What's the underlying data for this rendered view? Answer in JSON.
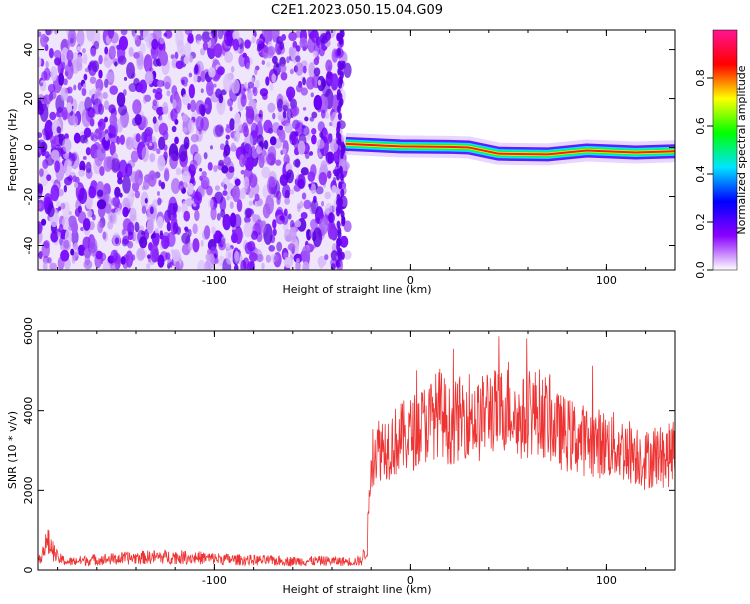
{
  "title": "C2E1.2023.050.15.04.G09",
  "chart_data": [
    {
      "type": "heatmap",
      "title": "C2E1.2023.050.15.04.G09",
      "xlabel": "Height of straight line (km)",
      "ylabel": "Frequency (Hz)",
      "xlim": [
        -190,
        135
      ],
      "ylim": [
        -50,
        48
      ],
      "x_ticks": [
        -100,
        0,
        100
      ],
      "y_ticks": [
        -40,
        -20,
        0,
        20,
        40
      ],
      "noise_region_x": [
        -190,
        -35
      ],
      "signal_track": [
        {
          "x": -33,
          "y": 1.5
        },
        {
          "x": -5,
          "y": 0.5
        },
        {
          "x": 20,
          "y": 0.3
        },
        {
          "x": 30,
          "y": 0.0
        },
        {
          "x": 45,
          "y": -2.5
        },
        {
          "x": 70,
          "y": -2.8
        },
        {
          "x": 90,
          "y": -1.2
        },
        {
          "x": 115,
          "y": -2.0
        },
        {
          "x": 135,
          "y": -1.5
        }
      ],
      "colorbar": {
        "label": "Normalized spectral amplitude",
        "range": [
          0,
          1
        ],
        "ticks": [
          0.0,
          0.2,
          0.4,
          0.6,
          0.8
        ],
        "colors": [
          "#ffffff",
          "#8a00ff",
          "#0000ff",
          "#00e5ff",
          "#00ff00",
          "#ffff00",
          "#ff0000",
          "#ff1493"
        ]
      }
    },
    {
      "type": "line",
      "title": "",
      "xlabel": "Height of straight line (km)",
      "ylabel": "SNR (10 * v/v)",
      "xlim": [
        -190,
        135
      ],
      "ylim": [
        0,
        6000
      ],
      "x_ticks": [
        -100,
        0,
        100
      ],
      "y_ticks": [
        0,
        2000,
        4000,
        6000
      ],
      "color": "#ee3333",
      "series": [
        {
          "x": [
            -190,
            -185,
            -180,
            -175,
            -165,
            -150,
            -135,
            -120,
            -105,
            -90,
            -75,
            -60,
            -45,
            -30,
            -25,
            -22,
            -20,
            -18,
            -15,
            -10,
            -5,
            0,
            5,
            10,
            15,
            20,
            25,
            30,
            35,
            40,
            45,
            50,
            55,
            60,
            65,
            70,
            75,
            80,
            85,
            90,
            95,
            100,
            105,
            110,
            115,
            120,
            125,
            130,
            135
          ],
          "y": [
            250,
            700,
            300,
            200,
            250,
            280,
            320,
            330,
            300,
            260,
            240,
            220,
            230,
            210,
            230,
            600,
            2800,
            3000,
            3100,
            3150,
            3300,
            3400,
            3600,
            3750,
            4000,
            3600,
            3800,
            3950,
            3700,
            4100,
            3900,
            4200,
            3700,
            3900,
            4000,
            3800,
            3500,
            3400,
            3300,
            3250,
            3200,
            3150,
            3100,
            3000,
            2950,
            2750,
            2900,
            2800,
            3000
          ]
        }
      ]
    }
  ]
}
